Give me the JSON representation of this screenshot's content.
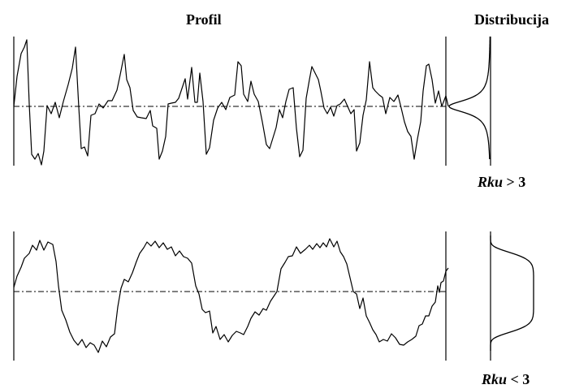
{
  "titles": {
    "profile": "Profil",
    "distribution": "Distribucija"
  },
  "panels": [
    {
      "id": "top",
      "label_symbol": "Rku",
      "label_relation": " > 3",
      "profile_shape": "spiky"
    },
    {
      "id": "bottom",
      "label_symbol": "Rku",
      "label_relation": " < 3",
      "profile_shape": "rounded-wave"
    }
  ],
  "colors": {
    "line": "#000000",
    "background": "#ffffff"
  }
}
